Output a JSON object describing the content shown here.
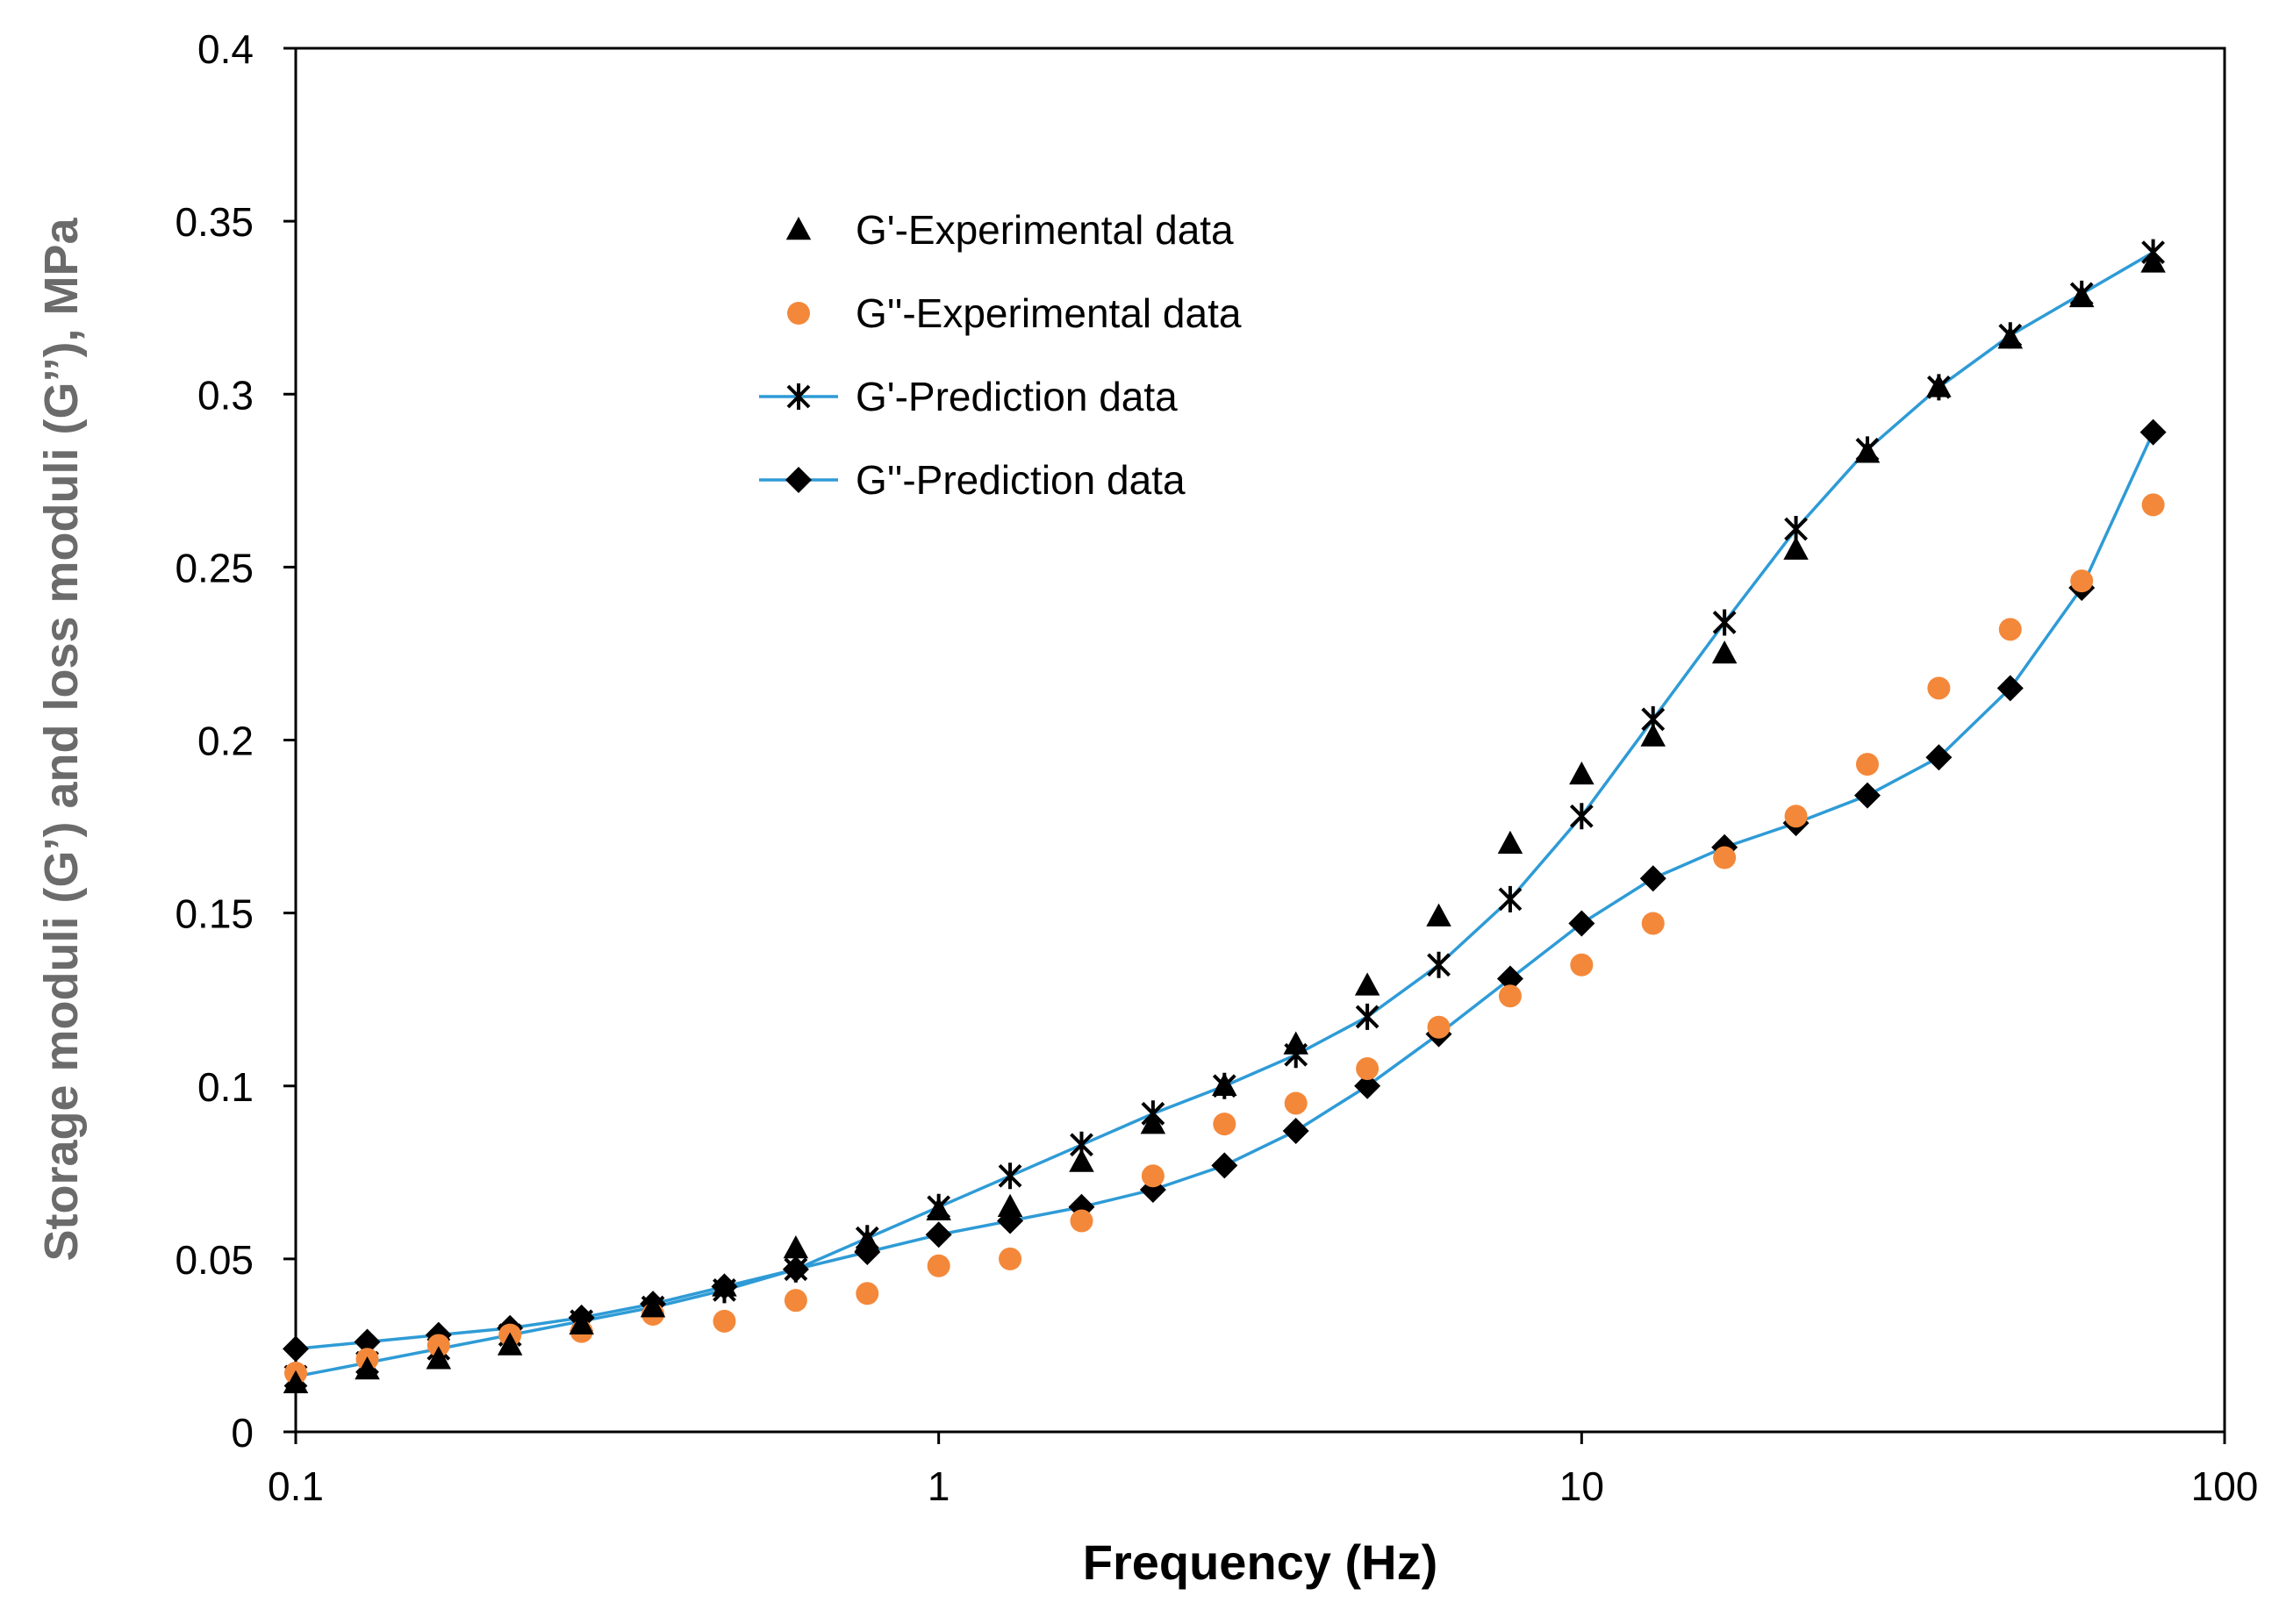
{
  "chart_data": {
    "type": "scatter",
    "title": "",
    "xlabel": "Frequency (Hz)",
    "ylabel": "Storage moduli (G’)  and loss moduli (G’’), MPa",
    "x_scale": "log",
    "xlim": [
      0.1,
      100
    ],
    "ylim": [
      0,
      0.4
    ],
    "x_ticks": [
      0.1,
      1,
      10,
      100
    ],
    "x_tick_labels": [
      "0.1",
      "1",
      "10",
      "100"
    ],
    "y_ticks": [
      0,
      0.05,
      0.1,
      0.15,
      0.2,
      0.25,
      0.3,
      0.35,
      0.4
    ],
    "y_tick_labels": [
      "0",
      "0.05",
      "0.1",
      "0.15",
      "0.2",
      "0.25",
      "0.3",
      "0.35",
      "0.4"
    ],
    "grid": false,
    "legend_position": "top-center",
    "x": [
      0.1,
      0.1292,
      0.1668,
      0.2154,
      0.2783,
      0.3594,
      0.4642,
      0.5995,
      0.7743,
      1.0,
      1.2915,
      1.6681,
      2.1544,
      2.7826,
      3.5938,
      4.6416,
      5.9948,
      7.7426,
      10.0,
      12.9155,
      16.681,
      21.5443,
      27.8256,
      35.9381,
      46.4159,
      59.9484,
      77.4264
    ],
    "series": [
      {
        "name": "G'-Experimental data",
        "marker": "triangle",
        "line": false,
        "color": "#000000",
        "values": [
          0.014,
          0.018,
          0.021,
          0.025,
          0.031,
          0.036,
          0.042,
          0.053,
          0.055,
          0.064,
          0.065,
          0.078,
          0.089,
          0.1,
          0.112,
          0.129,
          0.149,
          0.17,
          0.19,
          0.201,
          0.225,
          0.255,
          0.283,
          0.302,
          0.316,
          0.328,
          0.338
        ]
      },
      {
        "name": "G''-Experimental data",
        "marker": "circle",
        "line": false,
        "color": "#F4883A",
        "values": [
          0.017,
          0.021,
          0.025,
          0.028,
          0.029,
          0.034,
          0.032,
          0.038,
          0.04,
          0.048,
          0.05,
          0.061,
          0.074,
          0.089,
          0.095,
          0.105,
          0.117,
          0.126,
          0.135,
          0.147,
          0.166,
          0.178,
          0.193,
          0.215,
          0.232,
          0.246,
          0.268
        ]
      },
      {
        "name": "G'-Prediction data",
        "marker": "asterisk",
        "line": true,
        "color": "#2E9BD6",
        "values": [
          0.016,
          0.02,
          0.024,
          0.028,
          0.032,
          0.036,
          0.041,
          0.047,
          0.056,
          0.065,
          0.074,
          0.083,
          0.092,
          0.1,
          0.109,
          0.12,
          0.135,
          0.154,
          0.178,
          0.206,
          0.234,
          0.261,
          0.284,
          0.302,
          0.317,
          0.329,
          0.341
        ]
      },
      {
        "name": "G''-Prediction data",
        "marker": "diamond",
        "line": true,
        "color": "#2E9BD6",
        "values": [
          0.024,
          0.026,
          0.028,
          0.03,
          0.033,
          0.037,
          0.042,
          0.047,
          0.052,
          0.057,
          0.061,
          0.065,
          0.07,
          0.077,
          0.087,
          0.1,
          0.115,
          0.131,
          0.147,
          0.16,
          0.169,
          0.176,
          0.184,
          0.195,
          0.215,
          0.244,
          0.289
        ]
      }
    ]
  }
}
